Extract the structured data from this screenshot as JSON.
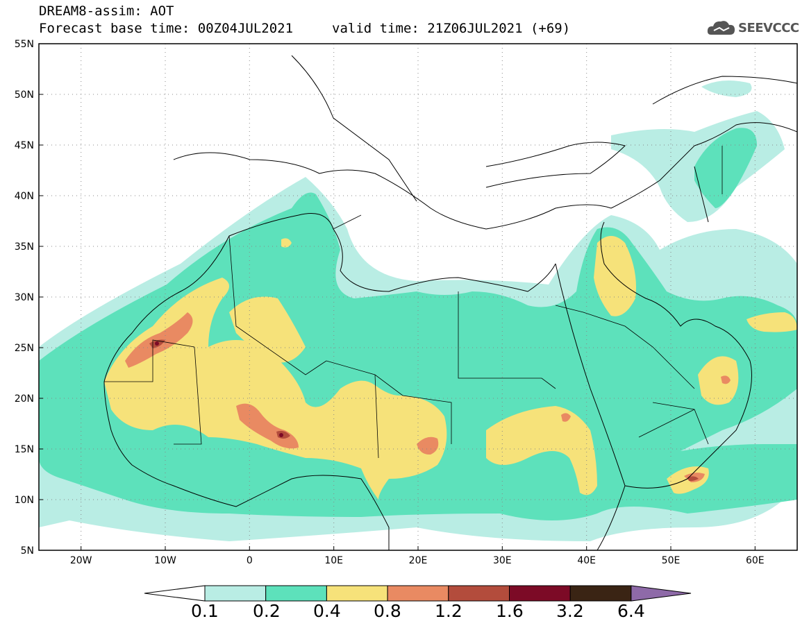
{
  "header": {
    "line1": "DREAM8-assim: AOT",
    "line2_left": "Forecast base time: 00Z04JUL2021",
    "line2_right": "valid time: 21Z06JUL2021 (+69)",
    "logo_text": "SEEVCCC"
  },
  "map": {
    "lon_range": [
      -25,
      65
    ],
    "lat_range": [
      5,
      55
    ],
    "lat_ticks": [
      "55N",
      "50N",
      "45N",
      "40N",
      "35N",
      "30N",
      "25N",
      "20N",
      "15N",
      "10N",
      "5N"
    ],
    "lon_ticks": [
      "20W",
      "10W",
      "0",
      "10E",
      "20E",
      "30E",
      "40E",
      "50E",
      "60E"
    ],
    "gridlines": true
  },
  "colorbar": {
    "labels": [
      "0.1",
      "0.2",
      "0.4",
      "0.8",
      "1.2",
      "1.6",
      "3.2",
      "6.4"
    ],
    "colors": [
      "#ffffff",
      "#b9ede4",
      "#5de1bb",
      "#f6e27a",
      "#e98a62",
      "#b34c3c",
      "#7c0a26",
      "#3a2414",
      "#8e6aa8"
    ]
  }
}
